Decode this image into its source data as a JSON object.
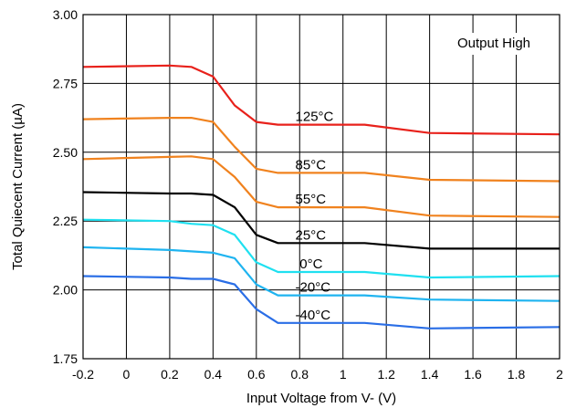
{
  "chart_data": {
    "type": "line",
    "title": "",
    "annotation": "Output High",
    "xlabel": "Input Voltage from V- (V)",
    "ylabel": "Total Quiecent Current (µA)",
    "xlim": [
      -0.2,
      2.0
    ],
    "ylim": [
      1.75,
      3.0
    ],
    "xticks": [
      -0.2,
      0,
      0.2,
      0.4,
      0.6,
      0.8,
      1,
      1.2,
      1.4,
      1.6,
      1.8,
      2
    ],
    "xtick_labels": [
      "-0.2",
      "0",
      "0.2",
      "0.4",
      "0.6",
      "0.8",
      "1",
      "1.2",
      "1.4",
      "1.6",
      "1.8",
      "2"
    ],
    "yticks": [
      1.75,
      2.0,
      2.25,
      2.5,
      2.75,
      3.0
    ],
    "ytick_labels": [
      "1.75",
      "2.00",
      "2.25",
      "2.50",
      "2.75",
      "3.00"
    ],
    "grid": true,
    "x": [
      -0.2,
      0.2,
      0.3,
      0.4,
      0.5,
      0.6,
      0.7,
      1.1,
      1.4,
      2.0
    ],
    "series": [
      {
        "name": "125°C",
        "color": "#e8211b",
        "label_x": 0.78,
        "values": [
          2.81,
          2.815,
          2.81,
          2.775,
          2.67,
          2.61,
          2.6,
          2.6,
          2.57,
          2.565
        ]
      },
      {
        "name": "85°C",
        "color": "#f0821e",
        "label_x": 0.78,
        "values": [
          2.62,
          2.625,
          2.625,
          2.61,
          2.52,
          2.44,
          2.425,
          2.425,
          2.4,
          2.395
        ]
      },
      {
        "name": "55°C",
        "color": "#f0821e",
        "label_x": 0.78,
        "values": [
          2.475,
          2.483,
          2.485,
          2.475,
          2.41,
          2.32,
          2.3,
          2.3,
          2.27,
          2.265
        ]
      },
      {
        "name": "25°C",
        "color": "#000000",
        "label_x": 0.78,
        "values": [
          2.355,
          2.35,
          2.35,
          2.345,
          2.3,
          2.2,
          2.17,
          2.17,
          2.15,
          2.15
        ]
      },
      {
        "name": "0°C",
        "color": "#1fe0f0",
        "label_x": 0.8,
        "values": [
          2.255,
          2.25,
          2.24,
          2.235,
          2.2,
          2.1,
          2.065,
          2.065,
          2.045,
          2.05
        ]
      },
      {
        "name": "-20°C",
        "color": "#1fb4f0",
        "label_x": 0.78,
        "values": [
          2.155,
          2.145,
          2.14,
          2.135,
          2.115,
          2.02,
          1.98,
          1.98,
          1.965,
          1.96
        ]
      },
      {
        "name": "-40°C",
        "color": "#2a6ee6",
        "label_x": 0.78,
        "values": [
          2.05,
          2.045,
          2.04,
          2.04,
          2.02,
          1.93,
          1.88,
          1.88,
          1.86,
          1.865
        ]
      }
    ]
  }
}
